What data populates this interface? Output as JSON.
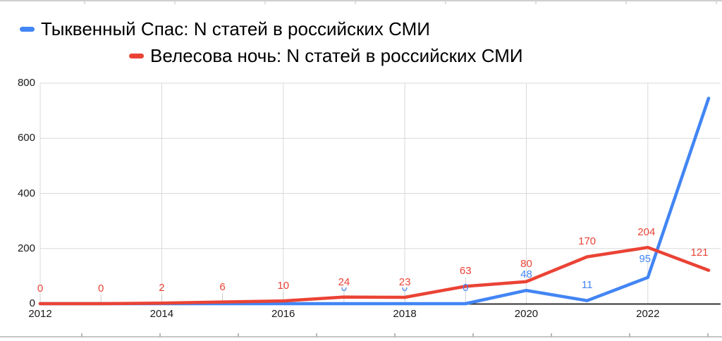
{
  "chart_data": {
    "type": "line",
    "title": "",
    "x": [
      2012,
      2013,
      2014,
      2015,
      2016,
      2017,
      2018,
      2019,
      2020,
      2021,
      2022,
      2023
    ],
    "series": [
      {
        "name": "Тыквенный Спас: N статей в российских СМИ",
        "color": "#4285f4",
        "values": [
          0,
          0,
          0,
          0,
          0,
          0,
          0,
          0,
          48,
          11,
          95,
          745
        ],
        "point_labels": [
          null,
          null,
          null,
          null,
          null,
          "0",
          "0",
          "0",
          "48",
          "11",
          "95",
          null
        ]
      },
      {
        "name": "Велесова ночь: N статей в российских СМИ",
        "color": "#ea4335",
        "values": [
          0,
          0,
          2,
          6,
          10,
          24,
          23,
          63,
          80,
          170,
          204,
          121
        ],
        "point_labels": [
          "0",
          "0",
          "2",
          "6",
          "10",
          "24",
          "23",
          "63",
          "80",
          "170",
          "204",
          "121"
        ]
      }
    ],
    "xlabel": "",
    "ylabel": "",
    "ylim": [
      0,
      800
    ],
    "yticks": [
      0,
      200,
      400,
      600,
      800
    ],
    "xticks": [
      2012,
      2014,
      2016,
      2018,
      2020,
      2022
    ],
    "grid": true,
    "grid_color": "#d9d9d9",
    "axis_color": "#333333",
    "tick_label_color": "#1a1a1a",
    "stem_color": "#cccccc",
    "legend_position": "top"
  }
}
